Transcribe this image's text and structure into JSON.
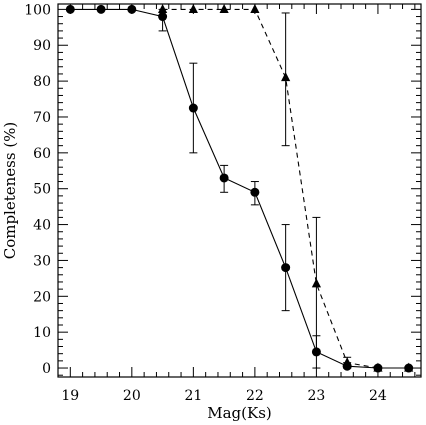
{
  "chart_data": {
    "type": "line",
    "xlabel": "Mag(Ks)",
    "ylabel": "Completeness (%)",
    "xlim": [
      18.8,
      24.7
    ],
    "ylim": [
      -2.5,
      101.5
    ],
    "xticks_major": [
      19,
      20,
      21,
      22,
      23,
      24
    ],
    "xticks_minor_step": 0.2,
    "yticks_major": [
      0,
      10,
      20,
      30,
      40,
      50,
      60,
      70,
      80,
      90,
      100
    ],
    "yticks_minor_step": 2,
    "grid": false,
    "legend": "none",
    "series": [
      {
        "marker": "circle",
        "line": "solid",
        "color": "#000000",
        "points": [
          {
            "x": 19.0,
            "y": 100
          },
          {
            "x": 19.5,
            "y": 100
          },
          {
            "x": 20.0,
            "y": 100
          },
          {
            "x": 20.5,
            "y": 98,
            "err_low": 94,
            "err_high": 100
          },
          {
            "x": 21.0,
            "y": 72.5,
            "err_low": 60,
            "err_high": 85
          },
          {
            "x": 21.5,
            "y": 53,
            "err_low": 49,
            "err_high": 56.5
          },
          {
            "x": 22.0,
            "y": 49,
            "err_low": 45.5,
            "err_high": 52
          },
          {
            "x": 22.5,
            "y": 28,
            "err_low": 16,
            "err_high": 40
          },
          {
            "x": 23.0,
            "y": 4.5,
            "err_low": 0,
            "err_high": 9
          },
          {
            "x": 23.5,
            "y": 0.5,
            "err_low": 0,
            "err_high": 1.5
          },
          {
            "x": 24.0,
            "y": 0
          },
          {
            "x": 24.5,
            "y": 0
          }
        ]
      },
      {
        "marker": "triangle",
        "line": "dashed",
        "color": "#000000",
        "points": [
          {
            "x": 20.5,
            "y": 100
          },
          {
            "x": 21.0,
            "y": 100
          },
          {
            "x": 21.5,
            "y": 100
          },
          {
            "x": 22.0,
            "y": 100
          },
          {
            "x": 22.5,
            "y": 81,
            "err_low": 62,
            "err_high": 99
          },
          {
            "x": 23.0,
            "y": 23.5,
            "err_low": 5,
            "err_high": 42
          },
          {
            "x": 23.5,
            "y": 1.5,
            "err_low": 0,
            "err_high": 3
          },
          {
            "x": 24.0,
            "y": 0
          },
          {
            "x": 24.5,
            "y": 0
          }
        ]
      }
    ]
  }
}
